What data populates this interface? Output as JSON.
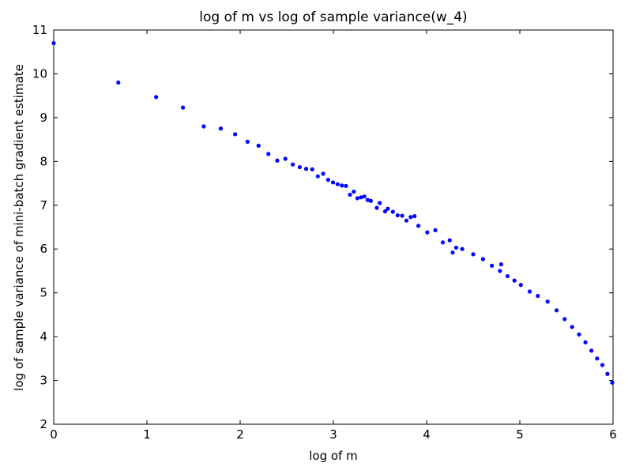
{
  "chart_data": {
    "type": "scatter",
    "title": "log of m vs log of sample variance(w_4)",
    "x_label": "log of m",
    "y_label": "log of sample variance of mini-batch gradient estimate",
    "xlim": [
      0,
      6
    ],
    "xticks": [
      0,
      1,
      2,
      3,
      4,
      5,
      6
    ],
    "ylim": [
      2,
      11
    ],
    "yticks": [
      2,
      3,
      4,
      5,
      6,
      7,
      8,
      9,
      10,
      11
    ],
    "color": "#0000ff",
    "x": [
      0,
      0.693,
      1.099,
      1.386,
      1.609,
      1.792,
      1.946,
      2.079,
      2.197,
      2.303,
      2.398,
      2.485,
      2.565,
      2.639,
      2.708,
      2.773,
      2.833,
      2.89,
      2.944,
      2.996,
      3.045,
      3.091,
      3.135,
      3.178,
      3.219,
      3.258,
      3.296,
      3.332,
      3.367,
      3.401,
      3.466,
      3.497,
      3.555,
      3.584,
      3.638,
      3.689,
      3.738,
      3.784,
      3.829,
      3.871,
      3.912,
      4.007,
      4.094,
      4.174,
      4.248,
      4.28,
      4.317,
      4.382,
      4.5,
      4.605,
      4.7,
      4.787,
      4.8,
      4.868,
      4.942,
      5.011,
      5.106,
      5.193,
      5.298,
      5.394,
      5.481,
      5.561,
      5.635,
      5.704,
      5.768,
      5.829,
      5.886,
      5.94,
      5.991
    ],
    "values": [
      10.7,
      9.8,
      9.47,
      9.23,
      8.8,
      8.75,
      8.62,
      8.45,
      8.36,
      8.17,
      8.02,
      8.06,
      7.93,
      7.87,
      7.83,
      7.82,
      7.66,
      7.72,
      7.58,
      7.52,
      7.48,
      7.45,
      7.44,
      7.24,
      7.31,
      7.16,
      7.18,
      7.2,
      7.12,
      7.1,
      6.94,
      7.05,
      6.86,
      6.92,
      6.85,
      6.77,
      6.76,
      6.65,
      6.73,
      6.75,
      6.53,
      6.38,
      6.43,
      6.15,
      6.2,
      5.92,
      6.03,
      6.0,
      5.88,
      5.77,
      5.62,
      5.5,
      5.65,
      5.38,
      5.28,
      5.18,
      5.03,
      4.93,
      4.8,
      4.6,
      4.4,
      4.22,
      4.05,
      3.87,
      3.68,
      3.5,
      3.35,
      3.15,
      2.95
    ]
  }
}
